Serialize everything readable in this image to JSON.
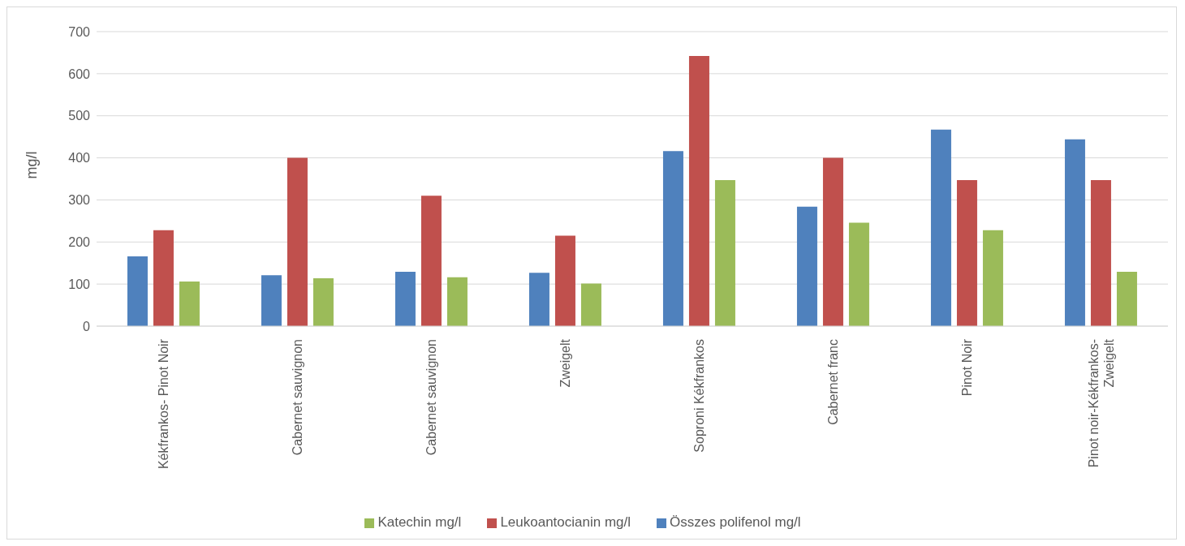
{
  "chart_data": {
    "type": "bar",
    "ylabel": "mg/l",
    "categories": [
      "Kékfrankos- Pinot Noir",
      "Cabernet sauvignon",
      "Cabernet sauvignon",
      "Zweigelt",
      "Soproni Kékfrankos",
      "Cabernet franc",
      "Pinot Noir",
      "Pinot noir-Kékfrankos-Zweigelt"
    ],
    "series": [
      {
        "name": "Összes polifenol mg/l",
        "color": "#4f81bd",
        "values": [
          166,
          121,
          129,
          127,
          416,
          284,
          467,
          444
        ]
      },
      {
        "name": "Leukoantocianin mg/l",
        "color": "#c0504d",
        "values": [
          228,
          400,
          310,
          215,
          642,
          400,
          347,
          347
        ]
      },
      {
        "name": "Katechin mg/l",
        "color": "#9bbb59",
        "values": [
          106,
          114,
          116,
          101,
          347,
          246,
          228,
          129
        ]
      }
    ],
    "ylim": [
      0,
      700
    ],
    "yticks": [
      0,
      100,
      200,
      300,
      400,
      500,
      600,
      700
    ],
    "grid": "y",
    "legend": "bottom"
  }
}
